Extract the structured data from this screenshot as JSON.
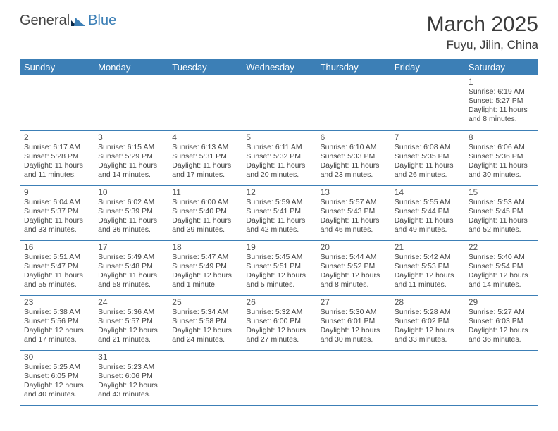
{
  "logo": {
    "text_left": "General",
    "text_right": "Blue"
  },
  "title": "March 2025",
  "location": "Fuyu, Jilin, China",
  "colors": {
    "header_bg": "#3c7fb6",
    "header_text": "#ffffff",
    "cell_border": "#3c7fb6",
    "body_text": "#444444",
    "background": "#ffffff"
  },
  "typography": {
    "title_fontsize": 30,
    "location_fontsize": 17,
    "dayheader_fontsize": 13,
    "daynum_fontsize": 12,
    "cell_fontsize": 10.5
  },
  "day_headers": [
    "Sunday",
    "Monday",
    "Tuesday",
    "Wednesday",
    "Thursday",
    "Friday",
    "Saturday"
  ],
  "weeks": [
    [
      {
        "day": "",
        "sunrise": "",
        "sunset": "",
        "daylight": ""
      },
      {
        "day": "",
        "sunrise": "",
        "sunset": "",
        "daylight": ""
      },
      {
        "day": "",
        "sunrise": "",
        "sunset": "",
        "daylight": ""
      },
      {
        "day": "",
        "sunrise": "",
        "sunset": "",
        "daylight": ""
      },
      {
        "day": "",
        "sunrise": "",
        "sunset": "",
        "daylight": ""
      },
      {
        "day": "",
        "sunrise": "",
        "sunset": "",
        "daylight": ""
      },
      {
        "day": "1",
        "sunrise": "Sunrise: 6:19 AM",
        "sunset": "Sunset: 5:27 PM",
        "daylight": "Daylight: 11 hours and 8 minutes."
      }
    ],
    [
      {
        "day": "2",
        "sunrise": "Sunrise: 6:17 AM",
        "sunset": "Sunset: 5:28 PM",
        "daylight": "Daylight: 11 hours and 11 minutes."
      },
      {
        "day": "3",
        "sunrise": "Sunrise: 6:15 AM",
        "sunset": "Sunset: 5:29 PM",
        "daylight": "Daylight: 11 hours and 14 minutes."
      },
      {
        "day": "4",
        "sunrise": "Sunrise: 6:13 AM",
        "sunset": "Sunset: 5:31 PM",
        "daylight": "Daylight: 11 hours and 17 minutes."
      },
      {
        "day": "5",
        "sunrise": "Sunrise: 6:11 AM",
        "sunset": "Sunset: 5:32 PM",
        "daylight": "Daylight: 11 hours and 20 minutes."
      },
      {
        "day": "6",
        "sunrise": "Sunrise: 6:10 AM",
        "sunset": "Sunset: 5:33 PM",
        "daylight": "Daylight: 11 hours and 23 minutes."
      },
      {
        "day": "7",
        "sunrise": "Sunrise: 6:08 AM",
        "sunset": "Sunset: 5:35 PM",
        "daylight": "Daylight: 11 hours and 26 minutes."
      },
      {
        "day": "8",
        "sunrise": "Sunrise: 6:06 AM",
        "sunset": "Sunset: 5:36 PM",
        "daylight": "Daylight: 11 hours and 30 minutes."
      }
    ],
    [
      {
        "day": "9",
        "sunrise": "Sunrise: 6:04 AM",
        "sunset": "Sunset: 5:37 PM",
        "daylight": "Daylight: 11 hours and 33 minutes."
      },
      {
        "day": "10",
        "sunrise": "Sunrise: 6:02 AM",
        "sunset": "Sunset: 5:39 PM",
        "daylight": "Daylight: 11 hours and 36 minutes."
      },
      {
        "day": "11",
        "sunrise": "Sunrise: 6:00 AM",
        "sunset": "Sunset: 5:40 PM",
        "daylight": "Daylight: 11 hours and 39 minutes."
      },
      {
        "day": "12",
        "sunrise": "Sunrise: 5:59 AM",
        "sunset": "Sunset: 5:41 PM",
        "daylight": "Daylight: 11 hours and 42 minutes."
      },
      {
        "day": "13",
        "sunrise": "Sunrise: 5:57 AM",
        "sunset": "Sunset: 5:43 PM",
        "daylight": "Daylight: 11 hours and 46 minutes."
      },
      {
        "day": "14",
        "sunrise": "Sunrise: 5:55 AM",
        "sunset": "Sunset: 5:44 PM",
        "daylight": "Daylight: 11 hours and 49 minutes."
      },
      {
        "day": "15",
        "sunrise": "Sunrise: 5:53 AM",
        "sunset": "Sunset: 5:45 PM",
        "daylight": "Daylight: 11 hours and 52 minutes."
      }
    ],
    [
      {
        "day": "16",
        "sunrise": "Sunrise: 5:51 AM",
        "sunset": "Sunset: 5:47 PM",
        "daylight": "Daylight: 11 hours and 55 minutes."
      },
      {
        "day": "17",
        "sunrise": "Sunrise: 5:49 AM",
        "sunset": "Sunset: 5:48 PM",
        "daylight": "Daylight: 11 hours and 58 minutes."
      },
      {
        "day": "18",
        "sunrise": "Sunrise: 5:47 AM",
        "sunset": "Sunset: 5:49 PM",
        "daylight": "Daylight: 12 hours and 1 minute."
      },
      {
        "day": "19",
        "sunrise": "Sunrise: 5:45 AM",
        "sunset": "Sunset: 5:51 PM",
        "daylight": "Daylight: 12 hours and 5 minutes."
      },
      {
        "day": "20",
        "sunrise": "Sunrise: 5:44 AM",
        "sunset": "Sunset: 5:52 PM",
        "daylight": "Daylight: 12 hours and 8 minutes."
      },
      {
        "day": "21",
        "sunrise": "Sunrise: 5:42 AM",
        "sunset": "Sunset: 5:53 PM",
        "daylight": "Daylight: 12 hours and 11 minutes."
      },
      {
        "day": "22",
        "sunrise": "Sunrise: 5:40 AM",
        "sunset": "Sunset: 5:54 PM",
        "daylight": "Daylight: 12 hours and 14 minutes."
      }
    ],
    [
      {
        "day": "23",
        "sunrise": "Sunrise: 5:38 AM",
        "sunset": "Sunset: 5:56 PM",
        "daylight": "Daylight: 12 hours and 17 minutes."
      },
      {
        "day": "24",
        "sunrise": "Sunrise: 5:36 AM",
        "sunset": "Sunset: 5:57 PM",
        "daylight": "Daylight: 12 hours and 21 minutes."
      },
      {
        "day": "25",
        "sunrise": "Sunrise: 5:34 AM",
        "sunset": "Sunset: 5:58 PM",
        "daylight": "Daylight: 12 hours and 24 minutes."
      },
      {
        "day": "26",
        "sunrise": "Sunrise: 5:32 AM",
        "sunset": "Sunset: 6:00 PM",
        "daylight": "Daylight: 12 hours and 27 minutes."
      },
      {
        "day": "27",
        "sunrise": "Sunrise: 5:30 AM",
        "sunset": "Sunset: 6:01 PM",
        "daylight": "Daylight: 12 hours and 30 minutes."
      },
      {
        "day": "28",
        "sunrise": "Sunrise: 5:28 AM",
        "sunset": "Sunset: 6:02 PM",
        "daylight": "Daylight: 12 hours and 33 minutes."
      },
      {
        "day": "29",
        "sunrise": "Sunrise: 5:27 AM",
        "sunset": "Sunset: 6:03 PM",
        "daylight": "Daylight: 12 hours and 36 minutes."
      }
    ],
    [
      {
        "day": "30",
        "sunrise": "Sunrise: 5:25 AM",
        "sunset": "Sunset: 6:05 PM",
        "daylight": "Daylight: 12 hours and 40 minutes."
      },
      {
        "day": "31",
        "sunrise": "Sunrise: 5:23 AM",
        "sunset": "Sunset: 6:06 PM",
        "daylight": "Daylight: 12 hours and 43 minutes."
      },
      {
        "day": "",
        "sunrise": "",
        "sunset": "",
        "daylight": ""
      },
      {
        "day": "",
        "sunrise": "",
        "sunset": "",
        "daylight": ""
      },
      {
        "day": "",
        "sunrise": "",
        "sunset": "",
        "daylight": ""
      },
      {
        "day": "",
        "sunrise": "",
        "sunset": "",
        "daylight": ""
      },
      {
        "day": "",
        "sunrise": "",
        "sunset": "",
        "daylight": ""
      }
    ]
  ]
}
